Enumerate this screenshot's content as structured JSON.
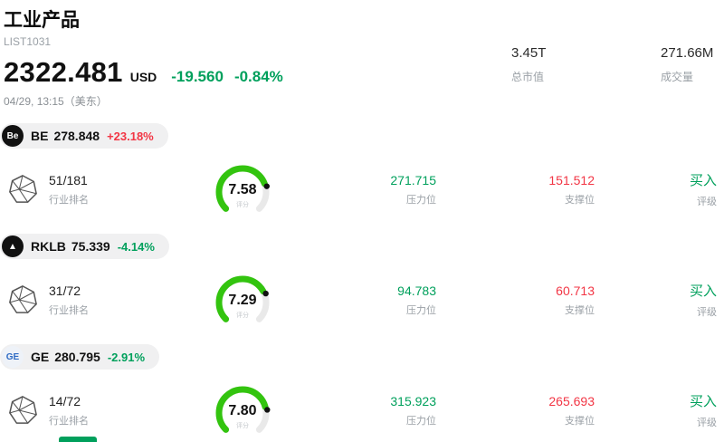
{
  "header": {
    "title": "工业产品",
    "list_id": "LIST1031",
    "price": "2322.481",
    "currency": "USD",
    "change_amount": "-19.560",
    "change_pct": "-0.84%",
    "timestamp": "04/29, 13:15（美东）",
    "market_cap": {
      "value": "3.45T",
      "label": "总市值"
    },
    "volume": {
      "value": "271.66M",
      "label": "成交量"
    }
  },
  "labels": {
    "rank": "行业排名",
    "score": "评分",
    "resistance": "压力位",
    "support": "支撑位",
    "rating": "评级"
  },
  "colors": {
    "red_up": "#f23645",
    "green_down": "#00a05c",
    "gauge_fill": "#33c40f",
    "gauge_track": "#e9e9e9",
    "gauge_dot": "#111111"
  },
  "stocks": [
    {
      "ticker": "BE",
      "price": "278.848",
      "change": "+23.18%",
      "change_color": "#f23645",
      "logo": {
        "text": "Be",
        "bg": "#111111",
        "fg": "#ffffff"
      },
      "rank": "51/181",
      "score": "7.58",
      "score_value": 7.58,
      "resistance": "271.715",
      "support": "151.512",
      "rating": "买入"
    },
    {
      "ticker": "RKLB",
      "price": "75.339",
      "change": "-4.14%",
      "change_color": "#00a05c",
      "logo": {
        "text": "▲",
        "bg": "#111111",
        "fg": "#ffffff"
      },
      "rank": "31/72",
      "score": "7.29",
      "score_value": 7.29,
      "resistance": "94.783",
      "support": "60.713",
      "rating": "买入"
    },
    {
      "ticker": "GE",
      "price": "280.795",
      "change": "-2.91%",
      "change_color": "#00a05c",
      "logo": {
        "text": "GE",
        "bg": "#eef2f8",
        "fg": "#2f6bc4"
      },
      "rank": "14/72",
      "score": "7.80",
      "score_value": 7.8,
      "resistance": "315.923",
      "support": "265.693",
      "rating": "买入"
    }
  ]
}
